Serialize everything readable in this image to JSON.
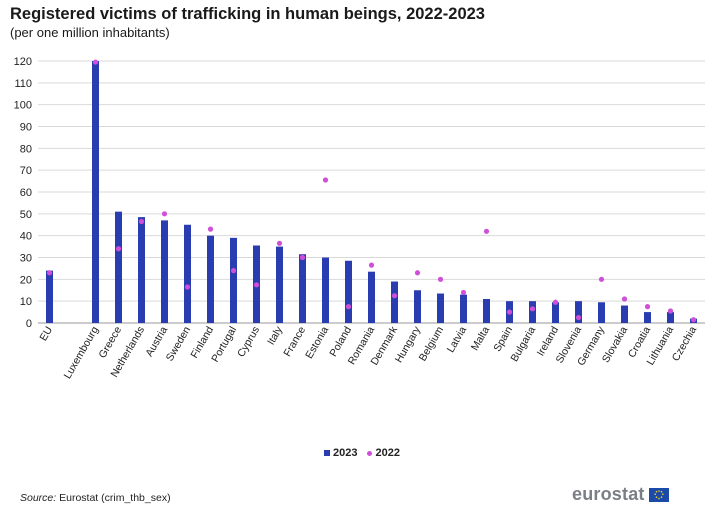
{
  "header": {
    "title": "Registered victims of trafficking in human beings, 2022-2023",
    "subtitle": "(per one million inhabitants)"
  },
  "footer": {
    "source_label": "Source:",
    "source_text": " Eurostat (crim_thb_sex)",
    "logo_text": "eurostat"
  },
  "colors": {
    "bar_2023": "#2a3db0",
    "dot_2022": "#d04fd8",
    "grid": "#d9d9d9"
  },
  "chart_data": {
    "type": "bar",
    "title": "Registered victims of trafficking in human beings, 2022-2023",
    "subtitle": "(per one million inhabitants)",
    "categories": [
      "EU",
      "",
      "Luxembourg",
      "Greece",
      "Netherlands",
      "Austria",
      "Sweden",
      "Finland",
      "Portugal",
      "Cyprus",
      "Italy",
      "France",
      "Estonia",
      "Poland",
      "Romania",
      "Denmark",
      "Hungary",
      "Belgium",
      "Latvia",
      "Malta",
      "Spain",
      "Bulgaria",
      "Ireland",
      "Slovenia",
      "Germany",
      "Slovakia",
      "Croatia",
      "Lithuania",
      "Czechia"
    ],
    "series": [
      {
        "name": "2023",
        "type": "bar",
        "values": [
          24,
          null,
          120,
          51,
          48.5,
          47,
          45,
          40,
          39,
          35.5,
          35,
          31.5,
          30,
          28.5,
          23.5,
          19,
          15,
          13.5,
          13,
          11,
          10,
          10,
          9.5,
          10,
          9.5,
          8,
          5,
          5,
          2
        ]
      },
      {
        "name": "2022",
        "type": "scatter",
        "values": [
          23,
          null,
          119.5,
          34,
          46.5,
          50,
          16.5,
          43,
          24,
          17.5,
          36.5,
          30,
          65.5,
          7.5,
          26.5,
          12.5,
          23,
          20,
          14,
          42,
          5,
          6.5,
          9.5,
          2.5,
          20,
          11,
          7.5,
          5.5,
          1.5
        ]
      }
    ],
    "ylim": [
      0,
      120
    ],
    "yticks": [
      0,
      10,
      20,
      30,
      40,
      50,
      60,
      70,
      80,
      90,
      100,
      110,
      120
    ],
    "grid": true,
    "legend": {
      "position": "bottom-center",
      "entries": [
        "2023",
        "2022"
      ]
    }
  }
}
